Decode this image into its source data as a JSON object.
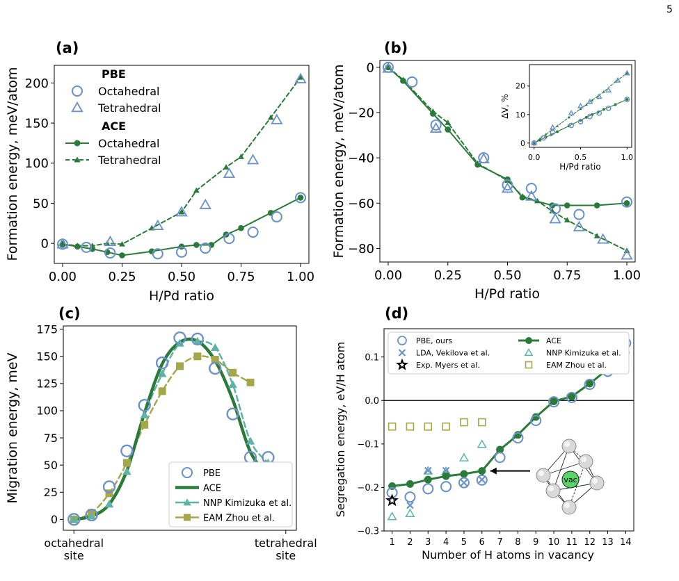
{
  "page_number": "5",
  "colors": {
    "pbe": "#6b93c8",
    "ace": "#2a7a3a",
    "nnp": "#5fb3a6",
    "eam": "#a5a84a",
    "ace_light": "#bcd9b4"
  },
  "chart_data": [
    {
      "panel": "(a)",
      "type": "scatter",
      "xlabel": "H/Pd ratio",
      "ylabel": "Formation energy, meV/atom",
      "xlim": [
        -0.035,
        1.035
      ],
      "ylim": [
        -25,
        222
      ],
      "xticks": [
        0.0,
        0.25,
        0.5,
        0.75,
        1.0
      ],
      "xtick_labels": [
        "0.00",
        "0.25",
        "0.50",
        "0.75",
        "1.00"
      ],
      "yticks": [
        0,
        50,
        100,
        150,
        200
      ],
      "ytick_labels": [
        "0",
        "50",
        "100",
        "150",
        "200"
      ],
      "legend": {
        "location": "upper-left",
        "group_pbe": "PBE",
        "group_ace": "ACE",
        "octa": "Octahedral",
        "tetra": "Tetrahedral"
      },
      "series": [
        {
          "name": "Octahedral",
          "group": "PBE",
          "style": "open-circle",
          "x": [
            0,
            0.1,
            0.2,
            0.4,
            0.5,
            0.6,
            0.7,
            0.8,
            0.9,
            1.0
          ],
          "y": [
            -1,
            -5,
            -12,
            -13,
            -11,
            -6,
            6,
            14,
            33,
            57
          ]
        },
        {
          "name": "Tetrahedral",
          "group": "PBE",
          "style": "open-triangle",
          "x": [
            0,
            0.2,
            0.4,
            0.5,
            0.6,
            0.7,
            0.8,
            0.9,
            1.0
          ],
          "y": [
            -1,
            2,
            22,
            39,
            48,
            87,
            104,
            154,
            205
          ]
        },
        {
          "name": "Octahedral",
          "group": "ACE",
          "style": "solid-circle-line",
          "x": [
            0,
            0.0625,
            0.125,
            0.1875,
            0.25,
            0.375,
            0.5,
            0.5625,
            0.625,
            0.6875,
            0.75,
            0.875,
            1.0
          ],
          "y": [
            -1,
            -4,
            -7,
            -11,
            -15,
            -10,
            -4,
            -2,
            -2,
            11,
            19,
            38,
            57
          ]
        },
        {
          "name": "Tetrahedral",
          "group": "ACE",
          "style": "solid-triangle-dashed",
          "x": [
            0,
            0.0625,
            0.125,
            0.1875,
            0.25,
            0.375,
            0.5,
            0.5625,
            0.6875,
            0.75,
            0.875,
            1.0
          ],
          "y": [
            -1,
            -3,
            -3,
            0,
            -1,
            19,
            39,
            66,
            95,
            108,
            157,
            207
          ]
        }
      ]
    },
    {
      "panel": "(b)",
      "type": "scatter",
      "xlabel": "H/Pd ratio",
      "ylabel": "Formation energy, meV/atom",
      "xlim": [
        -0.035,
        1.035
      ],
      "ylim": [
        -86,
        3
      ],
      "xticks": [
        0.0,
        0.25,
        0.5,
        0.75,
        1.0
      ],
      "xtick_labels": [
        "0.00",
        "0.25",
        "0.50",
        "0.75",
        "1.00"
      ],
      "yticks": [
        0,
        -20,
        -40,
        -60,
        -80
      ],
      "ytick_labels": [
        "0",
        "−20",
        "−40",
        "−60",
        "−80"
      ],
      "series": [
        {
          "name": "Octahedral",
          "group": "PBE",
          "style": "open-circle",
          "x": [
            0,
            0.1,
            0.2,
            0.4,
            0.5,
            0.6,
            0.7,
            0.8,
            1.0
          ],
          "y": [
            0,
            -6.5,
            -25.5,
            -40,
            -52,
            -53.5,
            -62.5,
            -65,
            -59.5
          ]
        },
        {
          "name": "Tetrahedral",
          "group": "PBE",
          "style": "open-triangle",
          "x": [
            0,
            0.2,
            0.4,
            0.5,
            0.6,
            0.7,
            0.8,
            0.9,
            1.0
          ],
          "y": [
            -0.5,
            -27,
            -40.5,
            -53.5,
            -57,
            -67,
            -70.5,
            -76,
            -83
          ]
        },
        {
          "name": "Octahedral",
          "group": "ACE",
          "style": "solid-circle-line",
          "x": [
            0,
            0.0625,
            0.1875,
            0.25,
            0.375,
            0.5,
            0.5625,
            0.6875,
            0.75,
            0.875,
            1.0
          ],
          "y": [
            0,
            -6,
            -20.5,
            -27.5,
            -43,
            -49.5,
            -57.5,
            -61,
            -61,
            -61,
            -60
          ]
        },
        {
          "name": "Tetrahedral",
          "group": "ACE",
          "style": "solid-triangle-dashed",
          "x": [
            0,
            0.0625,
            0.1875,
            0.25,
            0.375,
            0.5,
            0.5625,
            0.625,
            0.6875,
            0.75,
            0.875,
            1.0
          ],
          "y": [
            0,
            -5.5,
            -19.5,
            -24.5,
            -42.5,
            -50,
            -57,
            -59,
            -63.5,
            -67.5,
            -74.5,
            -81
          ]
        }
      ],
      "inset": {
        "xlabel": "H/Pd ratio",
        "ylabel": "ΔV, %",
        "xlim": [
          -0.05,
          1.05
        ],
        "ylim": [
          -1.5,
          27.5
        ],
        "xticks": [
          0.0,
          0.5,
          1.0
        ],
        "xtick_labels": [
          "0.0",
          "0.5",
          "1.0"
        ],
        "yticks": [
          0,
          10,
          20
        ],
        "ytick_labels": [
          "0",
          "10",
          "20"
        ],
        "series": [
          {
            "name": "Octahedral",
            "group": "PBE",
            "style": "open-circle",
            "x": [
              0,
              0.1,
              0.2,
              0.4,
              0.5,
              0.6,
              0.7,
              0.8,
              1.0
            ],
            "y": [
              0,
              1.8,
              3.8,
              6.2,
              7.5,
              9.3,
              10.5,
              12.2,
              15.3
            ]
          },
          {
            "name": "Tetrahedral",
            "group": "PBE",
            "style": "open-triangle",
            "x": [
              0,
              0.2,
              0.4,
              0.5,
              0.6,
              0.7,
              0.8,
              0.9,
              1.0
            ],
            "y": [
              0,
              5.5,
              10.5,
              13,
              14.5,
              16.3,
              18.5,
              22,
              24.5
            ]
          },
          {
            "name": "Octahedral",
            "group": "ACE",
            "style": "solid-circle-line",
            "x": [
              0,
              0.0625,
              0.125,
              0.1875,
              0.25,
              0.375,
              0.5,
              0.5625,
              0.625,
              0.6875,
              0.75,
              0.875,
              1.0
            ],
            "y": [
              0,
              1,
              2,
              3,
              4,
              6,
              8,
              9,
              10,
              10.8,
              11.8,
              13.5,
              15.3
            ]
          },
          {
            "name": "Tetrahedral",
            "group": "ACE",
            "style": "solid-triangle-dashed",
            "x": [
              0,
              0.0625,
              0.125,
              0.1875,
              0.25,
              0.375,
              0.5,
              0.5625,
              0.625,
              0.6875,
              0.75,
              0.875,
              1.0
            ],
            "y": [
              0,
              1.5,
              3,
              4.5,
              6,
              9,
              12,
              13.5,
              15,
              16.5,
              18,
              21.5,
              24.5
            ]
          }
        ]
      }
    },
    {
      "panel": "(c)",
      "type": "line",
      "xlabel": "",
      "ylabel": "Migration energy, meV",
      "xlim": [
        -0.05,
        1.05
      ],
      "ylim": [
        -10,
        178
      ],
      "xticks": [
        0,
        1
      ],
      "xtick_labels": [
        [
          "octahedral",
          "site"
        ],
        [
          "tetrahedral",
          "site"
        ]
      ],
      "yticks": [
        0,
        25,
        50,
        75,
        100,
        125,
        150,
        175
      ],
      "ytick_labels": [
        "0",
        "25",
        "50",
        "75",
        "100",
        "125",
        "150",
        "175"
      ],
      "legend": {
        "location": "lower-right"
      },
      "series": [
        {
          "name": "PBE",
          "style": "open-circle",
          "x": [
            0,
            0.0833,
            0.1667,
            0.25,
            0.3333,
            0.4167,
            0.5,
            0.5833,
            0.6667,
            0.75,
            0.8333,
            0.9167,
            1.0
          ],
          "y": [
            0,
            4,
            30,
            63,
            105,
            144,
            167,
            166,
            139,
            97,
            57,
            57,
            null
          ]
        },
        {
          "name": "ACE",
          "style": "thick-line",
          "x": [
            0,
            0.0833,
            0.1667,
            0.25,
            0.3333,
            0.4167,
            0.5,
            0.5833,
            0.6667,
            0.75,
            0.8333,
            0.9167,
            1.0
          ],
          "y": [
            0,
            3,
            14,
            45,
            98,
            143,
            163,
            164,
            146,
            110,
            62,
            43,
            41
          ]
        },
        {
          "name": "NNP Kimizuka et al.",
          "style": "triangle-dashed",
          "x": [
            0,
            0.0833,
            0.1667,
            0.25,
            0.3333,
            0.4167,
            0.5,
            0.5833,
            0.6667,
            0.75,
            0.8333,
            0.9167,
            1.0
          ],
          "y": [
            0,
            3,
            14,
            44,
            96,
            134,
            162,
            164,
            158,
            124,
            72,
            52,
            null
          ]
        },
        {
          "name": "EAM Zhou et al.",
          "style": "square-dashed",
          "x": [
            0,
            0.0833,
            0.1667,
            0.25,
            0.3333,
            0.4167,
            0.5,
            0.5833,
            0.6667,
            0.75,
            0.8333,
            0.9167,
            1.0
          ],
          "y": [
            0,
            6,
            24,
            52,
            87,
            118,
            141,
            150,
            147,
            135,
            126,
            null,
            null
          ]
        }
      ]
    },
    {
      "panel": "(d)",
      "type": "scatter",
      "xlabel": "Number of H atoms in vacancy",
      "ylabel": "Segregation energy, eV/H atom",
      "xlim": [
        0.55,
        14.45
      ],
      "ylim": [
        -0.3,
        0.165
      ],
      "xticks": [
        1,
        2,
        3,
        4,
        5,
        6,
        7,
        8,
        9,
        10,
        11,
        12,
        13,
        14
      ],
      "xtick_labels": [
        "1",
        "2",
        "3",
        "4",
        "5",
        "6",
        "7",
        "8",
        "9",
        "10",
        "11",
        "12",
        "13",
        "14"
      ],
      "yticks": [
        -0.3,
        -0.2,
        -0.1,
        0.0,
        0.1
      ],
      "ytick_labels": [
        "−0.3",
        "−0.2",
        "−0.1",
        "0.0",
        "0.1"
      ],
      "hline_y": 0,
      "legend": {
        "location": "upper-left",
        "columns": 2
      },
      "inset_label": "vac",
      "series": [
        {
          "name": "PBE, ours",
          "style": "open-circle",
          "x": [
            1,
            2,
            3,
            4,
            5,
            6,
            7,
            8,
            9,
            10,
            11,
            12,
            13,
            14
          ],
          "y": [
            -0.212,
            -0.222,
            -0.203,
            -0.198,
            -0.189,
            -0.183,
            -0.131,
            -0.086,
            -0.046,
            -0.003,
            0.007,
            0.037,
            0.067,
            0.132
          ]
        },
        {
          "name": "LDA, Vekilova et al.",
          "style": "x",
          "x": [
            2,
            3,
            4,
            5,
            6
          ],
          "y": [
            -0.241,
            -0.161,
            -0.161,
            -0.189,
            -0.182
          ]
        },
        {
          "name": "Exp. Myers et al.",
          "style": "star",
          "x": [
            1
          ],
          "y": [
            -0.23
          ]
        },
        {
          "name": "ACE",
          "style": "solid-circle-line",
          "x": [
            1,
            2,
            3,
            4,
            5,
            6,
            7,
            8,
            9,
            10,
            11,
            12,
            13,
            14
          ],
          "y": [
            -0.197,
            -0.192,
            -0.182,
            -0.174,
            -0.169,
            -0.162,
            -0.113,
            -0.079,
            -0.038,
            -0.002,
            0.009,
            0.039,
            0.072,
            0.11
          ]
        },
        {
          "name": "NNP Kimizuka et al.",
          "style": "open-triangle",
          "x": [
            1,
            2,
            3,
            4,
            5,
            6
          ],
          "y": [
            -0.267,
            -0.26,
            -0.162,
            -0.163,
            -0.132,
            -0.101
          ]
        },
        {
          "name": "EAM Zhou et al.",
          "style": "open-square",
          "x": [
            1,
            2,
            3,
            4,
            5,
            6
          ],
          "y": [
            -0.06,
            -0.06,
            -0.06,
            -0.06,
            -0.05,
            -0.05
          ]
        }
      ]
    }
  ]
}
